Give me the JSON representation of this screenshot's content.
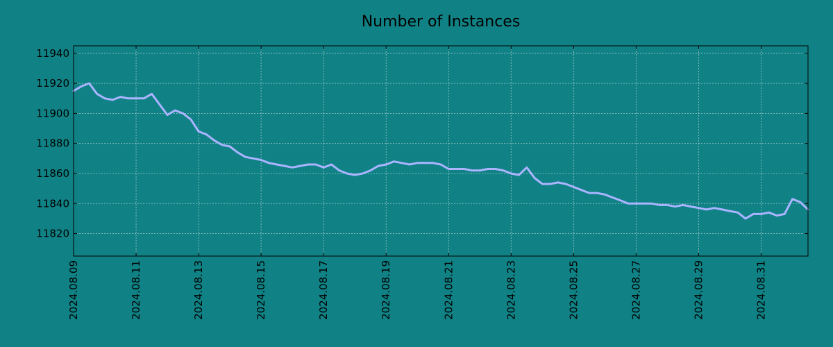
{
  "chart_data": {
    "type": "line",
    "title": "Number of Instances",
    "xlabel": "",
    "ylabel": "",
    "grid": true,
    "colors": {
      "background": "#108285",
      "line": "#aab4ff",
      "grid": "#c9dede",
      "axis": "#000000"
    },
    "xlim": [
      "2024-08-09",
      "2024-09-01 12:00"
    ],
    "ylim": [
      11805,
      11945
    ],
    "x_ticks": [
      "2024.08.09",
      "2024.08.11",
      "2024.08.13",
      "2024.08.15",
      "2024.08.17",
      "2024.08.19",
      "2024.08.21",
      "2024.08.23",
      "2024.08.25",
      "2024.08.27",
      "2024.08.29",
      "2024.08.31"
    ],
    "y_ticks": [
      11820,
      11840,
      11860,
      11880,
      11900,
      11920,
      11940
    ],
    "series": [
      {
        "x": [
          "2024-08-09 00:00",
          "2024-08-09 06:00",
          "2024-08-09 12:00",
          "2024-08-09 18:00",
          "2024-08-10 00:00",
          "2024-08-10 06:00",
          "2024-08-10 12:00",
          "2024-08-10 18:00",
          "2024-08-11 00:00",
          "2024-08-11 06:00",
          "2024-08-11 12:00",
          "2024-08-11 18:00",
          "2024-08-12 00:00",
          "2024-08-12 06:00",
          "2024-08-12 12:00",
          "2024-08-12 18:00",
          "2024-08-13 00:00",
          "2024-08-13 06:00",
          "2024-08-13 12:00",
          "2024-08-13 18:00",
          "2024-08-14 00:00",
          "2024-08-14 06:00",
          "2024-08-14 12:00",
          "2024-08-14 18:00",
          "2024-08-15 00:00",
          "2024-08-15 06:00",
          "2024-08-15 12:00",
          "2024-08-15 18:00",
          "2024-08-16 00:00",
          "2024-08-16 06:00",
          "2024-08-16 12:00",
          "2024-08-16 18:00",
          "2024-08-17 00:00",
          "2024-08-17 06:00",
          "2024-08-17 12:00",
          "2024-08-17 18:00",
          "2024-08-18 00:00",
          "2024-08-18 06:00",
          "2024-08-18 12:00",
          "2024-08-18 18:00",
          "2024-08-19 00:00",
          "2024-08-19 06:00",
          "2024-08-19 12:00",
          "2024-08-19 18:00",
          "2024-08-20 00:00",
          "2024-08-20 06:00",
          "2024-08-20 12:00",
          "2024-08-20 18:00",
          "2024-08-21 00:00",
          "2024-08-21 06:00",
          "2024-08-21 12:00",
          "2024-08-21 18:00",
          "2024-08-22 00:00",
          "2024-08-22 06:00",
          "2024-08-22 12:00",
          "2024-08-22 18:00",
          "2024-08-23 00:00",
          "2024-08-23 06:00",
          "2024-08-23 12:00",
          "2024-08-23 18:00",
          "2024-08-24 00:00",
          "2024-08-24 06:00",
          "2024-08-24 12:00",
          "2024-08-24 18:00",
          "2024-08-25 00:00",
          "2024-08-25 06:00",
          "2024-08-25 12:00",
          "2024-08-25 18:00",
          "2024-08-26 00:00",
          "2024-08-26 06:00",
          "2024-08-26 12:00",
          "2024-08-26 18:00",
          "2024-08-27 00:00",
          "2024-08-27 06:00",
          "2024-08-27 12:00",
          "2024-08-27 18:00",
          "2024-08-28 00:00",
          "2024-08-28 06:00",
          "2024-08-28 12:00",
          "2024-08-28 18:00",
          "2024-08-29 00:00",
          "2024-08-29 06:00",
          "2024-08-29 12:00",
          "2024-08-29 18:00",
          "2024-08-30 00:00",
          "2024-08-30 06:00",
          "2024-08-30 12:00",
          "2024-08-30 18:00",
          "2024-08-31 00:00",
          "2024-08-31 06:00",
          "2024-08-31 12:00",
          "2024-08-31 18:00",
          "2024-09-01 00:00",
          "2024-09-01 06:00",
          "2024-09-01 12:00"
        ],
        "values": [
          11915,
          11918,
          11920,
          11913,
          11910,
          11909,
          11911,
          11910,
          11910,
          11910,
          11913,
          11906,
          11899,
          11902,
          11900,
          11896,
          11888,
          11886,
          11882,
          11879,
          11878,
          11874,
          11871,
          11870,
          11869,
          11867,
          11866,
          11865,
          11864,
          11865,
          11866,
          11866,
          11864,
          11866,
          11862,
          11860,
          11859,
          11860,
          11862,
          11865,
          11866,
          11868,
          11867,
          11866,
          11867,
          11867,
          11867,
          11866,
          11863,
          11863,
          11863,
          11862,
          11862,
          11863,
          11863,
          11862,
          11860,
          11859,
          11864,
          11857,
          11853,
          11853,
          11854,
          11853,
          11851,
          11849,
          11847,
          11847,
          11846,
          11844,
          11842,
          11840,
          11840,
          11840,
          11840,
          11839,
          11839,
          11838,
          11839,
          11838,
          11837,
          11836,
          11837,
          11836,
          11835,
          11834,
          11830,
          11833,
          11833,
          11834,
          11832,
          11833,
          11843,
          11841,
          11836
        ]
      }
    ]
  }
}
